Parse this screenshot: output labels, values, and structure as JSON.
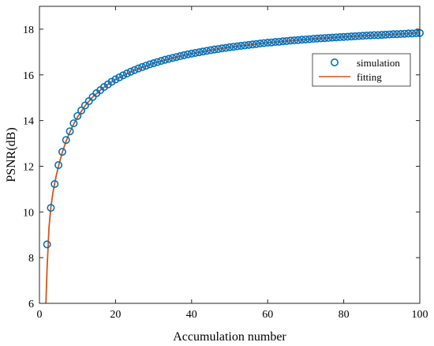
{
  "chart_data": {
    "type": "line",
    "xlabel": "Accumulation number",
    "ylabel": "PSNR(dB)",
    "xlim": [
      0,
      100
    ],
    "ylim": [
      6,
      19
    ],
    "xticks": [
      0,
      20,
      40,
      60,
      80,
      100
    ],
    "yticks": [
      6,
      8,
      10,
      12,
      14,
      16,
      18
    ],
    "grid": false,
    "legend_position": "top-right",
    "series": [
      {
        "name": "simulation",
        "style": "markers",
        "marker": "circle",
        "color": "#0072BD",
        "x": [
          2,
          3,
          4,
          5,
          6,
          7,
          8,
          9,
          10,
          11,
          12,
          13,
          14,
          15,
          16,
          17,
          18,
          19,
          20,
          21,
          22,
          23,
          24,
          25,
          26,
          27,
          28,
          29,
          30,
          31,
          32,
          33,
          34,
          35,
          36,
          37,
          38,
          39,
          40,
          41,
          42,
          43,
          44,
          45,
          46,
          47,
          48,
          49,
          50,
          51,
          52,
          53,
          54,
          55,
          56,
          57,
          58,
          59,
          60,
          61,
          62,
          63,
          64,
          65,
          66,
          67,
          68,
          69,
          70,
          71,
          72,
          73,
          74,
          75,
          76,
          77,
          78,
          79,
          80,
          81,
          82,
          83,
          84,
          85,
          86,
          87,
          88,
          89,
          90,
          91,
          92,
          93,
          94,
          95,
          96,
          97,
          98,
          99,
          100
        ],
        "y": [
          8.58,
          10.18,
          11.22,
          12.05,
          12.63,
          13.15,
          13.53,
          13.88,
          14.2,
          14.44,
          14.66,
          14.85,
          15.03,
          15.2,
          15.33,
          15.47,
          15.58,
          15.7,
          15.8,
          15.89,
          15.98,
          16.06,
          16.14,
          16.21,
          16.28,
          16.34,
          16.4,
          16.46,
          16.51,
          16.56,
          16.61,
          16.66,
          16.7,
          16.74,
          16.78,
          16.82,
          16.86,
          16.9,
          16.93,
          16.96,
          16.99,
          17.02,
          17.05,
          17.08,
          17.11,
          17.13,
          17.16,
          17.18,
          17.21,
          17.23,
          17.25,
          17.27,
          17.29,
          17.31,
          17.33,
          17.35,
          17.37,
          17.39,
          17.41,
          17.42,
          17.44,
          17.45,
          17.47,
          17.48,
          17.5,
          17.51,
          17.52,
          17.54,
          17.55,
          17.56,
          17.58,
          17.59,
          17.6,
          17.61,
          17.62,
          17.63,
          17.64,
          17.65,
          17.66,
          17.67,
          17.68,
          17.69,
          17.7,
          17.71,
          17.72,
          17.73,
          17.74,
          17.74,
          17.75,
          17.76,
          17.77,
          17.78,
          17.78,
          17.79,
          17.8,
          17.81,
          17.81,
          17.82,
          17.83
        ]
      },
      {
        "name": "fitting",
        "style": "line",
        "color": "#D95319",
        "x": [
          1.7,
          2,
          2.5,
          3,
          3.5,
          4,
          4.5,
          5,
          6,
          7,
          8,
          9,
          10,
          12,
          14,
          16,
          18,
          20,
          25,
          30,
          35,
          40,
          45,
          50,
          55,
          60,
          65,
          70,
          75,
          80,
          85,
          90,
          95,
          100
        ],
        "y": [
          6.0,
          7.5,
          9.3,
          10.2,
          10.8,
          11.25,
          11.65,
          12.0,
          12.6,
          13.1,
          13.5,
          13.85,
          14.15,
          14.65,
          15.03,
          15.33,
          15.58,
          15.8,
          16.21,
          16.51,
          16.74,
          16.93,
          17.08,
          17.21,
          17.31,
          17.41,
          17.48,
          17.55,
          17.61,
          17.66,
          17.71,
          17.75,
          17.79,
          17.84
        ]
      }
    ]
  }
}
